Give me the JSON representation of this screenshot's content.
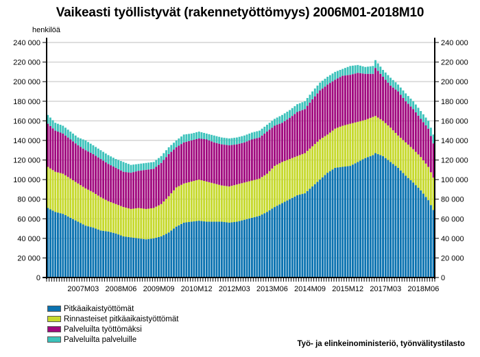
{
  "chart_data": {
    "type": "bar",
    "stacked": true,
    "title": "Vaikeasti työllistyvät (rakennetyöttömyys) 2006M01-2018M10",
    "ylabel": "henkilöä",
    "xlabel": "",
    "ylim": [
      0,
      240000
    ],
    "yticks": [
      0,
      20000,
      40000,
      60000,
      80000,
      100000,
      120000,
      140000,
      160000,
      180000,
      200000,
      220000,
      240000
    ],
    "ytick_labels": [
      "0",
      "20 000",
      "40 000",
      "60 000",
      "80 000",
      "100 000",
      "120 000",
      "140 000",
      "160 000",
      "180 000",
      "200 000",
      "220 000",
      "240 000"
    ],
    "x_start": "2006M01",
    "x_end": "2018M10",
    "n_months": 154,
    "xtick_labels": [
      "2007M03",
      "2008M06",
      "2009M09",
      "2010M12",
      "2012M03",
      "2013M06",
      "2014M09",
      "2015M12",
      "2017M03",
      "2018M06"
    ],
    "xtick_indices": [
      14,
      29,
      44,
      59,
      74,
      89,
      104,
      119,
      134,
      149
    ],
    "grid": true,
    "legend_position": "bottom-left",
    "anchors_note": "Values are cumulative stack tops read at anchor months (index from 2006M01=0); intermediate months linearly interpolated.",
    "anchors": {
      "index": [
        0,
        3,
        6,
        9,
        12,
        15,
        18,
        21,
        24,
        27,
        30,
        33,
        36,
        39,
        42,
        45,
        48,
        51,
        54,
        57,
        60,
        63,
        66,
        69,
        72,
        75,
        78,
        81,
        84,
        87,
        90,
        93,
        96,
        99,
        102,
        105,
        108,
        111,
        114,
        117,
        120,
        123,
        126,
        129,
        130,
        133,
        136,
        139,
        142,
        145,
        148,
        151,
        153
      ],
      "blue": [
        71,
        67,
        65,
        61,
        57,
        53,
        51,
        48,
        47,
        45,
        42,
        41,
        40,
        39,
        40,
        42,
        46,
        52,
        56,
        57,
        58,
        57,
        57,
        57,
        56,
        57,
        59,
        61,
        63,
        67,
        72,
        76,
        80,
        84,
        86,
        93,
        100,
        107,
        112,
        113,
        114,
        118,
        122,
        125,
        127,
        124,
        118,
        112,
        104,
        97,
        89,
        79,
        69
      ],
      "green_top": [
        113,
        108,
        106,
        101,
        96,
        91,
        87,
        82,
        78,
        75,
        72,
        70,
        71,
        70,
        71,
        75,
        83,
        92,
        96,
        98,
        100,
        98,
        96,
        94,
        93,
        95,
        97,
        99,
        101,
        106,
        114,
        118,
        121,
        124,
        127,
        134,
        141,
        146,
        152,
        155,
        157,
        159,
        161,
        164,
        165,
        160,
        153,
        145,
        138,
        131,
        123,
        113,
        102
      ],
      "magenta_top": [
        157,
        150,
        147,
        141,
        135,
        130,
        126,
        121,
        116,
        112,
        108,
        107,
        109,
        110,
        111,
        117,
        126,
        133,
        138,
        140,
        142,
        141,
        138,
        136,
        135,
        136,
        138,
        141,
        143,
        149,
        155,
        158,
        163,
        169,
        172,
        182,
        191,
        197,
        202,
        206,
        207,
        209,
        208,
        208,
        214,
        205,
        196,
        190,
        180,
        172,
        162,
        152,
        137
      ],
      "total": [
        166,
        158,
        155,
        149,
        143,
        140,
        135,
        130,
        125,
        121,
        118,
        115,
        116,
        117,
        118,
        124,
        133,
        140,
        146,
        147,
        149,
        147,
        145,
        143,
        142,
        143,
        145,
        148,
        150,
        156,
        162,
        166,
        171,
        177,
        180,
        190,
        199,
        205,
        210,
        213,
        216,
        217,
        215,
        216,
        222,
        212,
        204,
        197,
        188,
        180,
        170,
        160,
        146
      ]
    },
    "series": [
      {
        "name": "Pitkäaikaistyöttömät",
        "color": "#0a72b0"
      },
      {
        "name": "Rinnasteiset pitkäaikaistyöttömät",
        "color": "#c6d92c"
      },
      {
        "name": "Palveluilta työttömäksi",
        "color": "#a0087e"
      },
      {
        "name": "Palveluilta palveluille",
        "color": "#3cc2bb"
      }
    ],
    "source": "Työ- ja elinkeinoministeriö, työnvälitystilasto"
  },
  "header": {
    "title": "Vaikeasti työllistyvät (rakennetyöttömyys) 2006M01-2018M10",
    "unit_label": "henkilöä"
  },
  "legend": {
    "items": [
      {
        "label": "Pitkäaikaistyöttömät",
        "color": "#0a72b0"
      },
      {
        "label": "Rinnasteiset pitkäaikaistyöttömät",
        "color": "#c6d92c"
      },
      {
        "label": "Palveluilta työttömäksi",
        "color": "#a0087e"
      },
      {
        "label": "Palveluilta palveluille",
        "color": "#3cc2bb"
      }
    ]
  },
  "footer": {
    "source": "Työ- ja elinkeinoministeriö, työnvälitystilasto"
  }
}
